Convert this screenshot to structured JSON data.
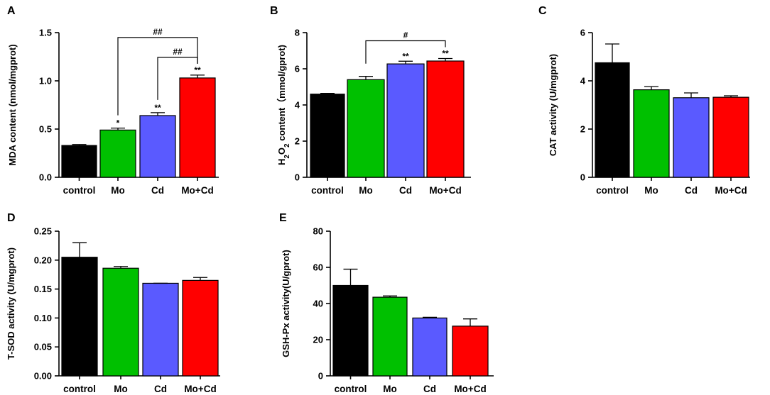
{
  "figure": {
    "colors": {
      "control": "#000000",
      "Mo": "#00c000",
      "Cd": "#5a5aff",
      "Mo+Cd": "#ff0000"
    }
  },
  "chart_data": [
    {
      "id": "A",
      "panel_letter": "A",
      "type": "bar",
      "categories": [
        "control",
        "Mo",
        "Cd",
        "Mo+Cd"
      ],
      "values": [
        0.33,
        0.49,
        0.64,
        1.03
      ],
      "errors": [
        0.01,
        0.02,
        0.03,
        0.03
      ],
      "significance": [
        "",
        "*",
        "**",
        "**"
      ],
      "ylabel": "MDA content (nmol/mgprot)",
      "ylim": [
        0,
        1.5
      ],
      "yticks": [
        0,
        0.5,
        1.0,
        1.5
      ],
      "ytick_labels": [
        "0.0",
        "0.5",
        "1.0",
        "1.5"
      ],
      "brackets": [
        {
          "from": 1,
          "to": 3,
          "label": "##"
        },
        {
          "from": 2,
          "to": 3,
          "label": "##"
        }
      ]
    },
    {
      "id": "B",
      "panel_letter": "B",
      "type": "bar",
      "categories": [
        "control",
        "Mo",
        "Cd",
        "Mo+Cd"
      ],
      "values": [
        4.6,
        5.4,
        6.27,
        6.43
      ],
      "errors": [
        0.04,
        0.18,
        0.15,
        0.14
      ],
      "significance": [
        "",
        "",
        "**",
        "**"
      ],
      "ylabel_parts": [
        "H",
        "2",
        "O",
        "2",
        " content（mmol/gprot)"
      ],
      "ylim": [
        0,
        8
      ],
      "yticks": [
        0,
        2,
        4,
        6,
        8
      ],
      "ytick_labels": [
        "0",
        "2",
        "4",
        "6",
        "8"
      ],
      "brackets": [
        {
          "from": 1,
          "to": 3,
          "label": "#"
        }
      ]
    },
    {
      "id": "C",
      "panel_letter": "C",
      "type": "bar",
      "categories": [
        "control",
        "Mo",
        "Cd",
        "Mo+Cd"
      ],
      "values": [
        4.75,
        3.63,
        3.3,
        3.32
      ],
      "errors": [
        0.78,
        0.13,
        0.2,
        0.06
      ],
      "significance": [
        "",
        "",
        "",
        ""
      ],
      "ylabel": "CAT activity (U/mgprot)",
      "ylim": [
        0,
        6
      ],
      "yticks": [
        0,
        2,
        4,
        6
      ],
      "ytick_labels": [
        "0",
        "2",
        "4",
        "6"
      ],
      "brackets": []
    },
    {
      "id": "D",
      "panel_letter": "D",
      "type": "bar",
      "categories": [
        "control",
        "Mo",
        "Cd",
        "Mo+Cd"
      ],
      "values": [
        0.205,
        0.186,
        0.16,
        0.165
      ],
      "errors": [
        0.025,
        0.003,
        0.0,
        0.005
      ],
      "significance": [
        "",
        "",
        "",
        ""
      ],
      "ylabel": "T-SOD activity (U/mgprot)",
      "ylim": [
        0,
        0.25
      ],
      "yticks": [
        0,
        0.05,
        0.1,
        0.15,
        0.2,
        0.25
      ],
      "ytick_labels": [
        "0.00",
        "0.05",
        "0.10",
        "0.15",
        "0.20",
        "0.25"
      ],
      "brackets": []
    },
    {
      "id": "E",
      "panel_letter": "E",
      "type": "bar",
      "categories": [
        "control",
        "Mo",
        "Cd",
        "Mo+Cd"
      ],
      "values": [
        50,
        43.5,
        32,
        27.5
      ],
      "errors": [
        9,
        0.7,
        0.4,
        4
      ],
      "significance": [
        "",
        "",
        "",
        ""
      ],
      "ylabel": "GSH-Px activity(U/gprot)",
      "ylim": [
        0,
        80
      ],
      "yticks": [
        0,
        20,
        40,
        60,
        80
      ],
      "ytick_labels": [
        "0",
        "20",
        "40",
        "60",
        "80"
      ],
      "brackets": []
    }
  ]
}
